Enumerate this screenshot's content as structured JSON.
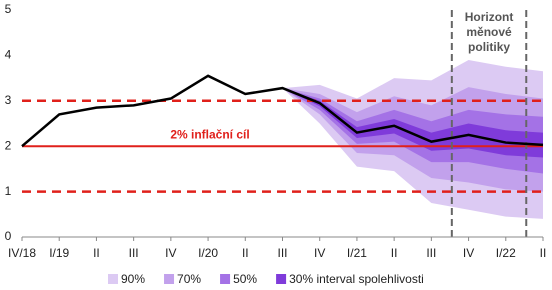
{
  "chart_data": {
    "type": "fan",
    "categories": [
      "IV/18",
      "I/19",
      "II",
      "III",
      "IV",
      "I/20",
      "II",
      "III",
      "IV",
      "I/21",
      "II",
      "III",
      "IV",
      "I/22",
      "II"
    ],
    "ylim": [
      0,
      5
    ],
    "yticks": [
      0,
      1,
      2,
      3,
      4,
      5
    ],
    "line": {
      "color": "#000000",
      "values": [
        2.0,
        2.7,
        2.85,
        2.9,
        3.05,
        3.55,
        3.15,
        3.28,
        2.95,
        2.3,
        2.45,
        2.1,
        2.25,
        2.08,
        2.03
      ]
    },
    "bands": [
      {
        "name": "90%",
        "color": "#dccaf3",
        "upper": [
          null,
          null,
          null,
          null,
          null,
          null,
          null,
          3.28,
          3.35,
          3.05,
          3.5,
          3.45,
          3.9,
          3.75,
          3.65
        ],
        "lower": [
          null,
          null,
          null,
          null,
          null,
          null,
          null,
          3.28,
          2.5,
          1.55,
          1.45,
          0.75,
          0.6,
          0.45,
          0.4
        ]
      },
      {
        "name": "70%",
        "color": "#c2a1ec",
        "upper": [
          null,
          null,
          null,
          null,
          null,
          null,
          null,
          3.28,
          3.15,
          2.75,
          3.1,
          2.9,
          3.3,
          3.15,
          3.05
        ],
        "lower": [
          null,
          null,
          null,
          null,
          null,
          null,
          null,
          3.28,
          2.7,
          1.85,
          1.8,
          1.3,
          1.2,
          1.05,
          1.0
        ]
      },
      {
        "name": "50%",
        "color": "#a472e6",
        "upper": [
          null,
          null,
          null,
          null,
          null,
          null,
          null,
          3.28,
          3.05,
          2.55,
          2.8,
          2.55,
          2.8,
          2.7,
          2.65
        ],
        "lower": [
          null,
          null,
          null,
          null,
          null,
          null,
          null,
          3.28,
          2.8,
          2.05,
          2.1,
          1.65,
          1.65,
          1.5,
          1.4
        ]
      },
      {
        "name": "30% interval spolehlivosti",
        "color": "#7f3bda",
        "upper": [
          null,
          null,
          null,
          null,
          null,
          null,
          null,
          3.28,
          3.0,
          2.42,
          2.6,
          2.3,
          2.5,
          2.35,
          2.3
        ],
        "lower": [
          null,
          null,
          null,
          null,
          null,
          null,
          null,
          3.28,
          2.88,
          2.18,
          2.28,
          1.9,
          1.95,
          1.8,
          1.75
        ]
      }
    ],
    "target": {
      "value": 2,
      "label": "2% inflační cíl",
      "color": "#e0201b"
    },
    "tolerance": {
      "values": [
        1,
        3
      ],
      "color": "#e0201b"
    },
    "horizon": {
      "label": [
        "Horizont",
        "měnové",
        "politiky"
      ],
      "range": [
        11.55,
        13.55
      ],
      "color": "#666666"
    }
  }
}
